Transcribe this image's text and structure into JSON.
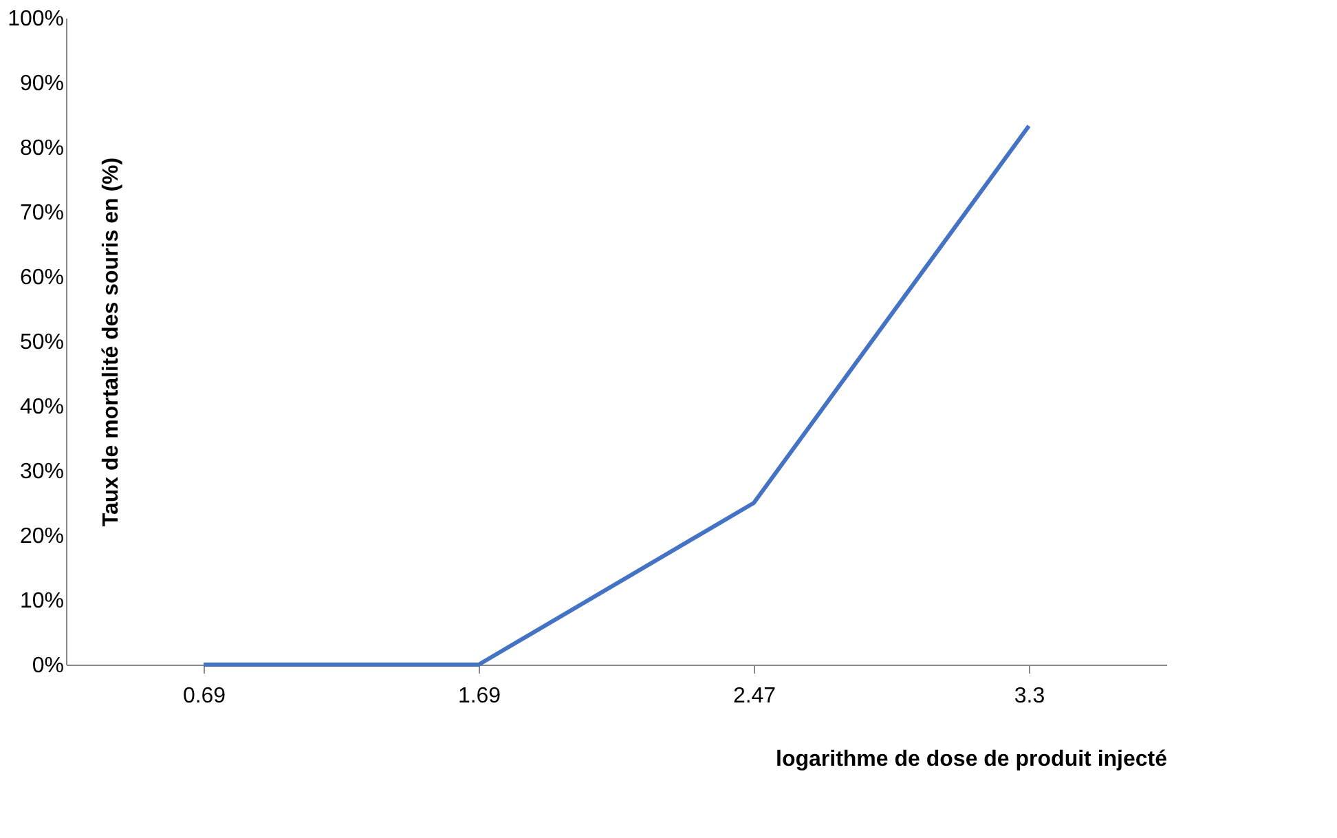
{
  "chart_data": {
    "type": "line",
    "xlabel": "logarithme de dose  de produit injecté",
    "ylabel": "Taux de mortalité des souris en (%)",
    "categories": [
      "0.69",
      "1.69",
      "2.47",
      "3.3"
    ],
    "series": [
      {
        "color": "#4472c4",
        "values": [
          0,
          0,
          25,
          83.3
        ]
      }
    ],
    "ylim": [
      0,
      100
    ],
    "yticks": [
      {
        "value": 0,
        "label": "0%"
      },
      {
        "value": 10,
        "label": "10%"
      },
      {
        "value": 20,
        "label": "20%"
      },
      {
        "value": 30,
        "label": "30%"
      },
      {
        "value": 40,
        "label": "40%"
      },
      {
        "value": 50,
        "label": "50%"
      },
      {
        "value": 60,
        "label": "60%"
      },
      {
        "value": 70,
        "label": "70%"
      },
      {
        "value": 80,
        "label": "80%"
      },
      {
        "value": 90,
        "label": "90%"
      },
      {
        "value": 100,
        "label": "100%"
      }
    ],
    "grid": false,
    "legend": false,
    "marker": "none",
    "line_style": "solid"
  }
}
